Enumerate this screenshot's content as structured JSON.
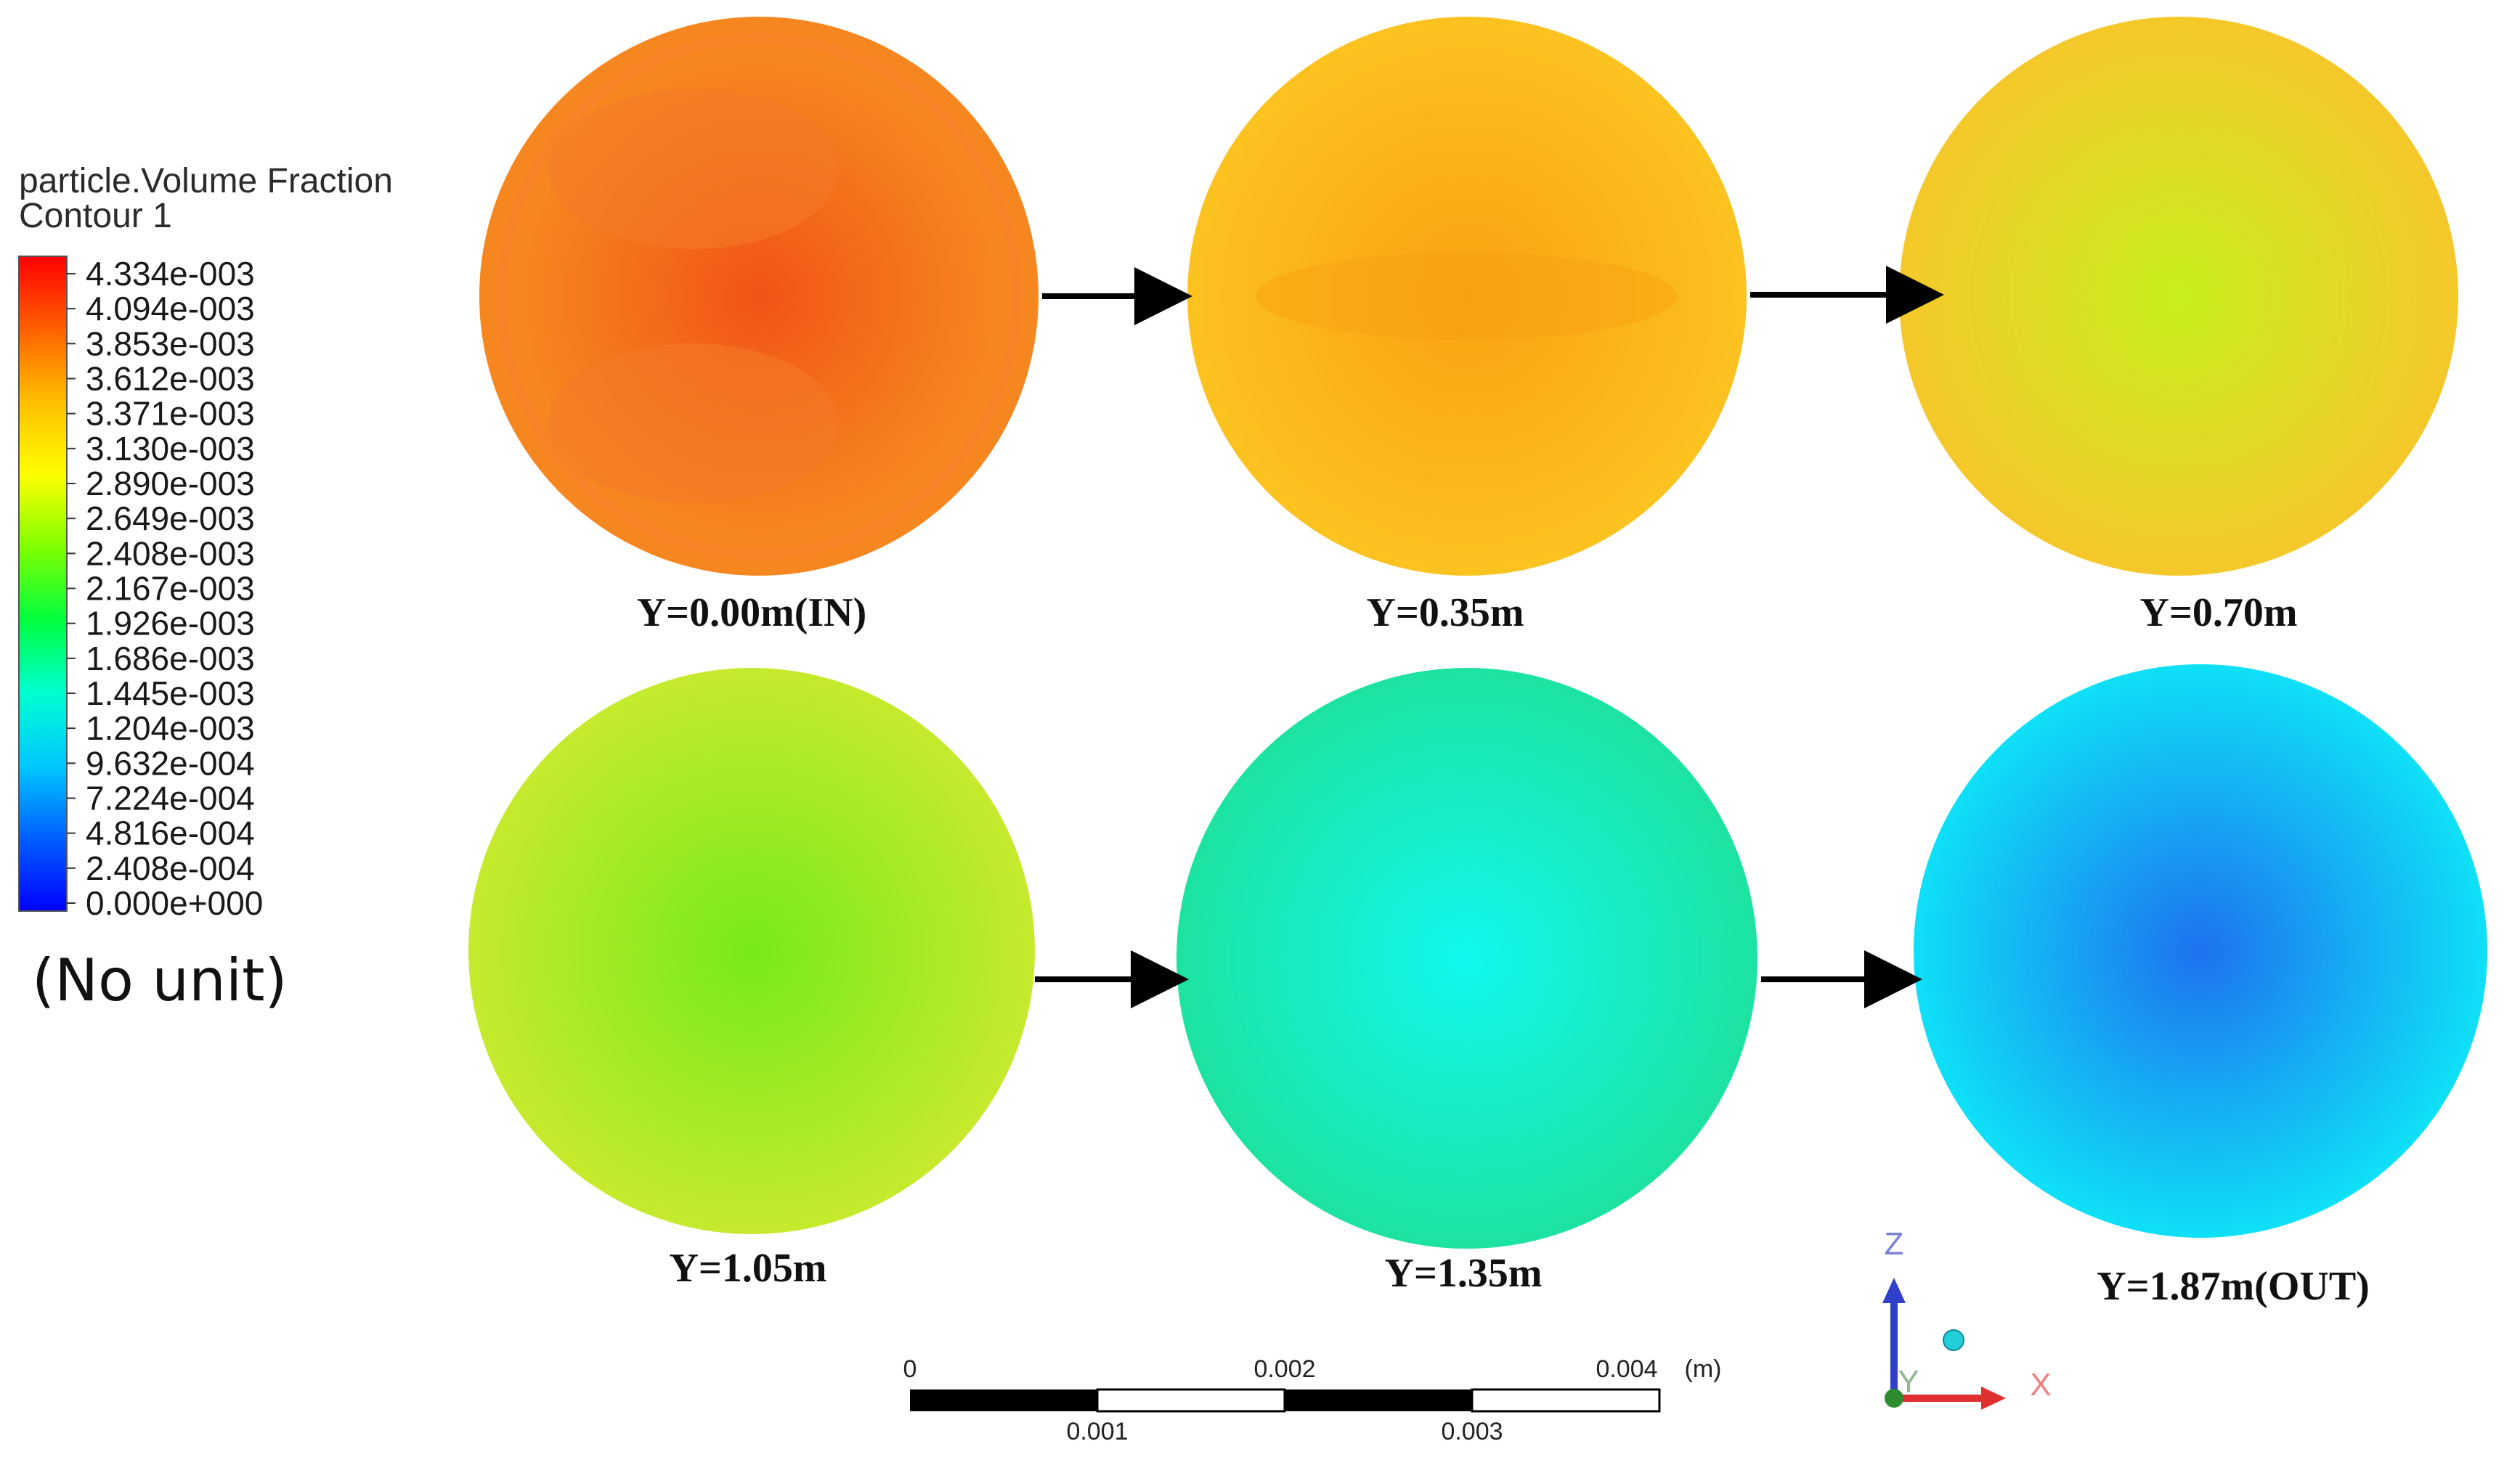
{
  "legend": {
    "title": "particle.Volume Fraction",
    "subtitle": "Contour 1",
    "ticks": [
      "4.334e-003",
      "4.094e-003",
      "3.853e-003",
      "3.612e-003",
      "3.371e-003",
      "3.130e-003",
      "2.890e-003",
      "2.649e-003",
      "2.408e-003",
      "2.167e-003",
      "1.926e-003",
      "1.686e-003",
      "1.445e-003",
      "1.204e-003",
      "9.632e-004",
      "7.224e-004",
      "4.816e-004",
      "2.408e-004",
      "0.000e+000"
    ],
    "colormap": [
      "#0000ff",
      "#0060ff",
      "#00c8ff",
      "#00ffd0",
      "#00ff40",
      "#80ff00",
      "#ffff00",
      "#ffc000",
      "#ff6000",
      "#ff0000"
    ],
    "unit_note": "(No unit)"
  },
  "planes": [
    {
      "label": "Y=0.00m(IN)",
      "center_color": "#f15416",
      "edge_color": "#f6861f",
      "pattern": "inlet"
    },
    {
      "label": "Y=0.35m",
      "center_color": "#faa10f",
      "edge_color": "#fbc622",
      "pattern": "band"
    },
    {
      "label": "Y=0.70m",
      "center_color": "#c7ef1d",
      "edge_color": "#f5c82a",
      "pattern": "radial"
    },
    {
      "label": "Y=1.05m",
      "center_color": "#76ea1a",
      "edge_color": "#c6ea2d",
      "pattern": "radial"
    },
    {
      "label": "Y=1.35m",
      "center_color": "#10f8ee",
      "edge_color": "#1de3a1",
      "pattern": "radial"
    },
    {
      "label": "Y=1.87m(OUT)",
      "center_color": "#1d72ef",
      "edge_color": "#0fe0f7",
      "pattern": "radial"
    }
  ],
  "scale_bar": {
    "top_labels": [
      "0",
      "0.002",
      "0.004"
    ],
    "bottom_labels": [
      "0.001",
      "0.003"
    ],
    "unit": "(m)"
  },
  "axes_triad": {
    "z": "Z",
    "x": "X",
    "y": "Y",
    "z_color": "#3040c8",
    "x_color": "#e03030",
    "y_color": "#2e8b2e"
  },
  "flow_arrow_color": "#000000"
}
